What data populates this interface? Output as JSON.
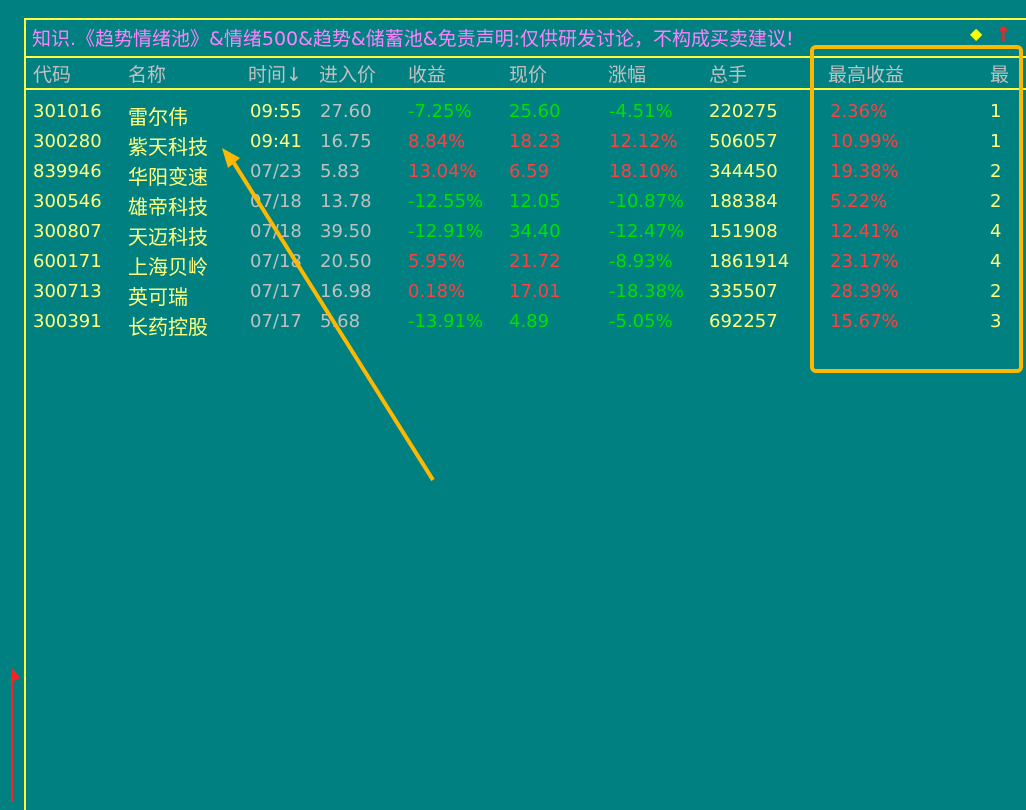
{
  "title": "知识.《趋势情绪池》&情绪500&趋势&储蓄池&免责声明:仅供研发讨论，不构成买卖建议!",
  "headers": [
    "代码",
    "名称",
    "时间↓",
    "进入价",
    "收益",
    "现价",
    "涨幅",
    "总手",
    "最高收益",
    "最"
  ],
  "rows": [
    {
      "code": "301016",
      "name": "雷尔伟",
      "time": "09:55",
      "entry": "27.60",
      "gain": "-7.25%",
      "price": "25.60",
      "chg": "-4.51%",
      "vol": "220275",
      "max": "2.36%",
      "n": "1"
    },
    {
      "code": "300280",
      "name": "紫天科技",
      "time": "09:41",
      "entry": "16.75",
      "gain": "8.84%",
      "price": "18.23",
      "chg": "12.12%",
      "vol": "506057",
      "max": "10.99%",
      "n": "1"
    },
    {
      "code": "839946",
      "name": "华阳变速",
      "time": "07/23",
      "entry": "5.83",
      "gain": "13.04%",
      "price": "6.59",
      "chg": "18.10%",
      "vol": "344450",
      "max": "19.38%",
      "n": "2"
    },
    {
      "code": "300546",
      "name": "雄帝科技",
      "time": "07/18",
      "entry": "13.78",
      "gain": "-12.55%",
      "price": "12.05",
      "chg": "-10.87%",
      "vol": "188384",
      "max": "5.22%",
      "n": "2"
    },
    {
      "code": "300807",
      "name": "天迈科技",
      "time": "07/18",
      "entry": "39.50",
      "gain": "-12.91%",
      "price": "34.40",
      "chg": "-12.47%",
      "vol": "151908",
      "max": "12.41%",
      "n": "4"
    },
    {
      "code": "600171",
      "name": "上海贝岭",
      "time": "07/18",
      "entry": "20.50",
      "gain": "5.95%",
      "price": "21.72",
      "chg": "-8.93%",
      "vol": "1861914",
      "max": "23.17%",
      "n": "4"
    },
    {
      "code": "300713",
      "name": "英可瑞",
      "time": "07/17",
      "entry": "16.98",
      "gain": "0.18%",
      "price": "17.01",
      "chg": "-18.38%",
      "vol": "335507",
      "max": "28.39%",
      "n": "2"
    },
    {
      "code": "300391",
      "name": "长药控股",
      "time": "07/17",
      "entry": "5.68",
      "gain": "-13.91%",
      "price": "4.89",
      "chg": "-5.05%",
      "vol": "692257",
      "max": "15.67%",
      "n": "3"
    }
  ],
  "colors": {
    "background": "#008080",
    "up": "#ff4040",
    "down": "#00e000",
    "highlight": "#ffb800"
  }
}
